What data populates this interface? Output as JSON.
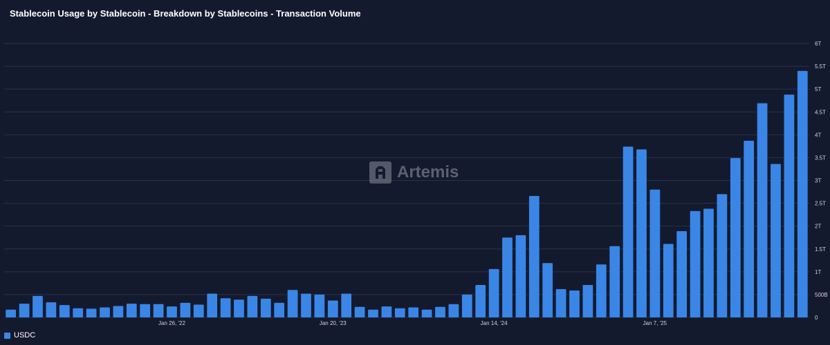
{
  "title": "Stablecoin Usage by Stablecoin - Breakdown by Stablecoins - Transaction Volume",
  "watermark": {
    "text": "Artemis",
    "icon": "artemis-logo-icon"
  },
  "colors": {
    "background": "#141a2e",
    "bar": "#3a86e6",
    "grid": "#2a3148"
  },
  "chart_data": {
    "type": "bar",
    "title": "Stablecoin Usage by Stablecoin - Breakdown by Stablecoins - Transaction Volume",
    "xlabel": "",
    "ylabel": "",
    "ylim": [
      0,
      6000
    ],
    "unit": "B",
    "y_ticks": [
      {
        "value": 0,
        "label": "0"
      },
      {
        "value": 500,
        "label": "500B"
      },
      {
        "value": 1000,
        "label": "1T"
      },
      {
        "value": 1500,
        "label": "1.5T"
      },
      {
        "value": 2000,
        "label": "2T"
      },
      {
        "value": 2500,
        "label": "2.5T"
      },
      {
        "value": 3000,
        "label": "3T"
      },
      {
        "value": 3500,
        "label": "3.5T"
      },
      {
        "value": 4000,
        "label": "4T"
      },
      {
        "value": 4500,
        "label": "4.5T"
      },
      {
        "value": 5000,
        "label": "5T"
      },
      {
        "value": 5500,
        "label": "5.5T"
      },
      {
        "value": 6000,
        "label": "6T"
      }
    ],
    "x_ticks": [
      {
        "index": 12,
        "label": "Jan 26, '22"
      },
      {
        "index": 24,
        "label": "Jan 20, '23"
      },
      {
        "index": 36,
        "label": "Jan 14, '24"
      },
      {
        "index": 48,
        "label": "Jan 7, '25"
      }
    ],
    "grid": true,
    "legend_position": "bottom-left",
    "series": [
      {
        "name": "USDC",
        "color": "#3a86e6",
        "values": [
          170,
          300,
          470,
          330,
          270,
          200,
          190,
          220,
          250,
          300,
          290,
          290,
          240,
          320,
          280,
          520,
          420,
          390,
          470,
          410,
          320,
          600,
          520,
          500,
          370,
          520,
          230,
          170,
          240,
          200,
          220,
          170,
          230,
          290,
          500,
          710,
          1060,
          1750,
          1800,
          2660,
          1190,
          620,
          590,
          710,
          1160,
          1560,
          3740,
          3680,
          2800,
          1610,
          1890,
          2330,
          2380,
          2700,
          3490,
          3870,
          4690,
          3360,
          4880,
          5400
        ]
      }
    ]
  }
}
